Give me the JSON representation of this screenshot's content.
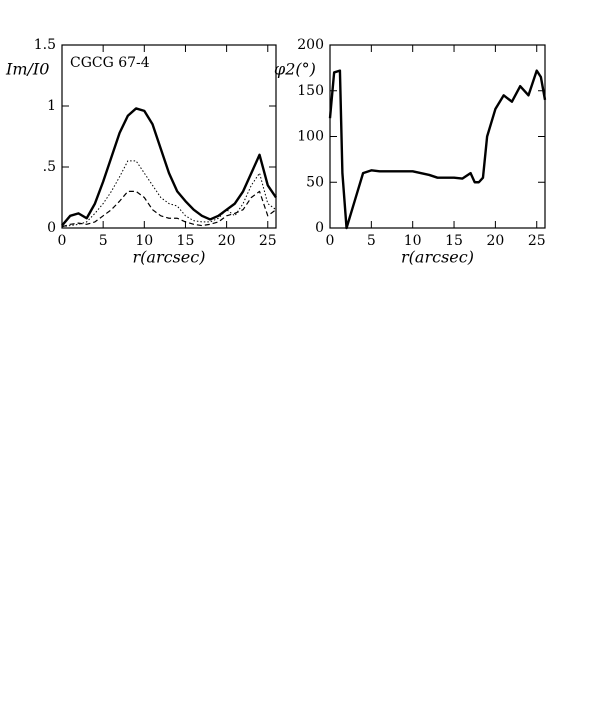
{
  "chart_data": [
    {
      "type": "line",
      "ylabel": "Im/I0",
      "xlabel": "r(arcsec)",
      "annotation": "CGCG 67-4",
      "xlim": [
        0,
        26
      ],
      "ylim": [
        0,
        1.5
      ],
      "xticks": [
        0,
        5,
        10,
        15,
        20,
        25
      ],
      "yticks": [
        0,
        {
          "value": 0.5,
          "label": ".5"
        },
        1,
        1.5
      ],
      "x": [
        0,
        1,
        2,
        3,
        4,
        5,
        6,
        7,
        8,
        9,
        10,
        11,
        12,
        13,
        14,
        15,
        16,
        17,
        18,
        19,
        20,
        21,
        22,
        23,
        24,
        25,
        26
      ],
      "series": [
        {
          "color": "#000",
          "style": "solid",
          "values": [
            0.02,
            0.1,
            0.12,
            0.08,
            0.2,
            0.38,
            0.58,
            0.78,
            0.92,
            0.98,
            0.96,
            0.85,
            0.65,
            0.45,
            0.3,
            0.22,
            0.15,
            0.1,
            0.07,
            0.1,
            0.15,
            0.2,
            0.3,
            0.45,
            0.6,
            0.35,
            0.25
          ]
        },
        {
          "color": "#000",
          "style": "dotted",
          "values": [
            0.01,
            0.02,
            0.03,
            0.05,
            0.12,
            0.2,
            0.3,
            0.42,
            0.55,
            0.55,
            0.45,
            0.35,
            0.25,
            0.2,
            0.18,
            0.1,
            0.06,
            0.05,
            0.05,
            0.08,
            0.15,
            0.1,
            0.2,
            0.35,
            0.45,
            0.2,
            0.15
          ]
        },
        {
          "color": "#000",
          "style": "dashed",
          "values": [
            0.01,
            0.03,
            0.04,
            0.03,
            0.05,
            0.1,
            0.15,
            0.22,
            0.3,
            0.3,
            0.25,
            0.15,
            0.1,
            0.08,
            0.08,
            0.05,
            0.03,
            0.02,
            0.03,
            0.05,
            0.1,
            0.12,
            0.15,
            0.25,
            0.3,
            0.1,
            0.15
          ]
        }
      ]
    },
    {
      "type": "line",
      "ylabel": "φ2(°)",
      "xlabel": "r(arcsec)",
      "xlim": [
        0,
        26
      ],
      "ylim": [
        0,
        200
      ],
      "xticks": [
        0,
        5,
        10,
        15,
        20,
        25
      ],
      "yticks": [
        0,
        50,
        100,
        150,
        200
      ],
      "x": [
        0,
        0.5,
        1.2,
        1.5,
        2,
        3,
        4,
        5,
        6,
        8,
        10,
        12,
        13,
        14,
        15,
        16,
        17,
        17.5,
        18,
        18.5,
        19,
        20,
        21,
        22,
        23,
        24,
        25,
        25.5,
        26
      ],
      "series": [
        {
          "color": "#000",
          "style": "solid",
          "values": [
            120,
            170,
            172,
            60,
            0,
            30,
            60,
            63,
            62,
            62,
            62,
            58,
            55,
            55,
            55,
            54,
            60,
            50,
            50,
            55,
            100,
            130,
            145,
            138,
            155,
            145,
            172,
            165,
            140
          ]
        }
      ]
    }
  ]
}
